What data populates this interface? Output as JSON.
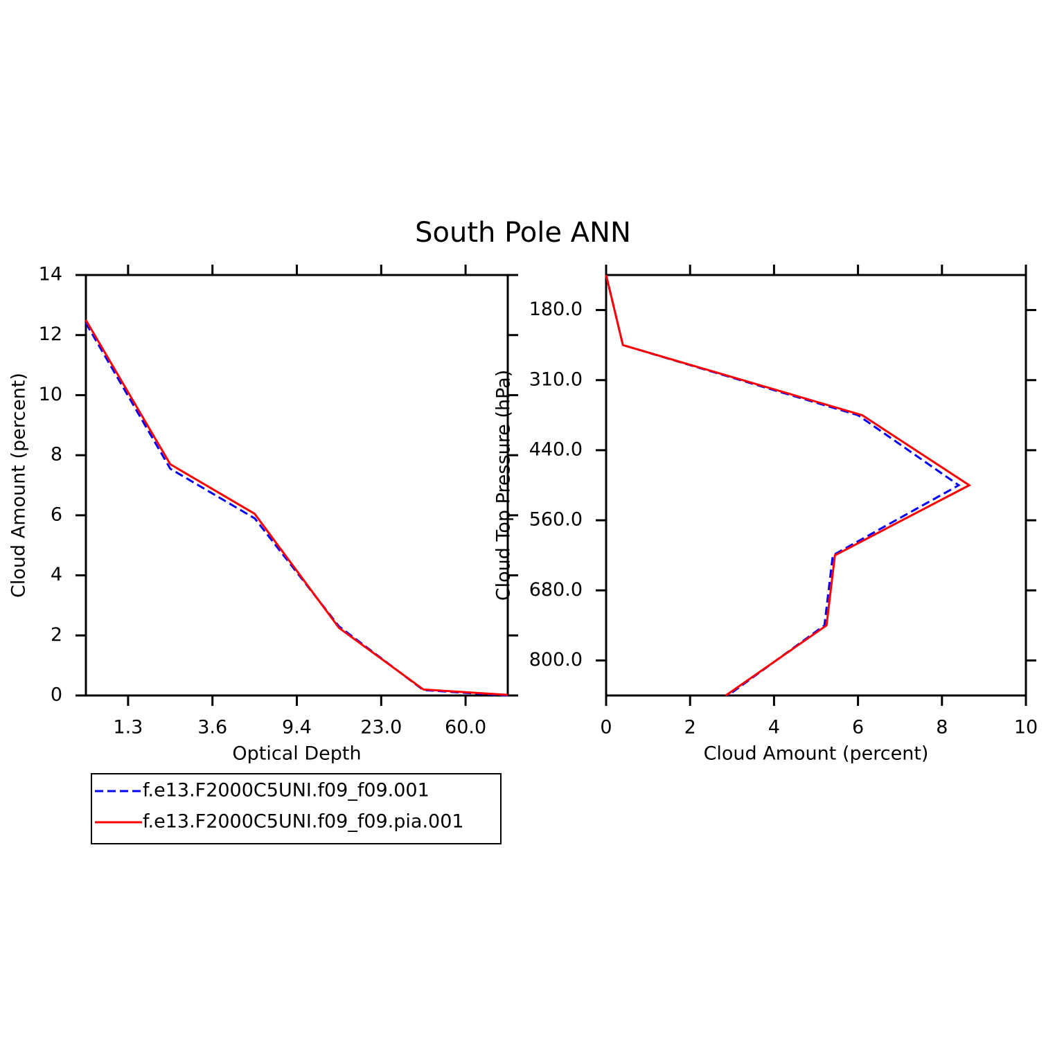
{
  "title": "South Pole ANN",
  "chart_data": [
    {
      "type": "line",
      "xlabel": "Optical Depth",
      "ylabel": "Cloud Amount (percent)",
      "x": [
        0,
        1,
        2,
        3,
        4,
        5
      ],
      "xlim": [
        0,
        5
      ],
      "xticks": [
        {
          "value": 0.5,
          "label": "1.3"
        },
        {
          "value": 1.5,
          "label": "3.6"
        },
        {
          "value": 2.5,
          "label": "9.4"
        },
        {
          "value": 3.5,
          "label": "23.0"
        },
        {
          "value": 4.5,
          "label": "60.0"
        }
      ],
      "ylim": [
        0,
        14
      ],
      "yticks": [
        0,
        2,
        4,
        6,
        8,
        10,
        12,
        14
      ],
      "series": [
        {
          "name": "f.e13.F2000C5UNI.f09_f09.001",
          "color": "#0000ff",
          "line_style": "dashed",
          "values": [
            12.4,
            7.55,
            5.9,
            2.3,
            0.18,
            0.0
          ]
        },
        {
          "name": "f.e13.F2000C5UNI.f09_f09.pia.001",
          "color": "#ff0000",
          "line_style": "solid",
          "values": [
            12.5,
            7.7,
            6.05,
            2.25,
            0.2,
            0.02
          ]
        }
      ]
    },
    {
      "type": "line",
      "orientation": "horizontal",
      "xlabel": "Cloud Amount (percent)",
      "ylabel": "Cloud Top Pressure (hPa)",
      "y": [
        0,
        1,
        2,
        3,
        4,
        5,
        6
      ],
      "ylim": [
        6,
        0
      ],
      "yticks": [
        {
          "value": 0.5,
          "label": "180.0"
        },
        {
          "value": 1.5,
          "label": "310.0"
        },
        {
          "value": 2.5,
          "label": "440.0"
        },
        {
          "value": 3.5,
          "label": "560.0"
        },
        {
          "value": 4.5,
          "label": "680.0"
        },
        {
          "value": 5.5,
          "label": "800.0"
        }
      ],
      "xlim": [
        0,
        10
      ],
      "xticks": [
        0,
        2,
        4,
        6,
        8,
        10
      ],
      "series": [
        {
          "color": "#0000ff",
          "line_style": "dashed",
          "values": [
            0.0,
            0.4,
            6.0,
            8.4,
            5.4,
            5.2,
            2.9
          ]
        },
        {
          "color": "#ff0000",
          "line_style": "solid",
          "values": [
            0.0,
            0.4,
            6.1,
            8.65,
            5.45,
            5.25,
            2.85
          ]
        }
      ]
    }
  ]
}
